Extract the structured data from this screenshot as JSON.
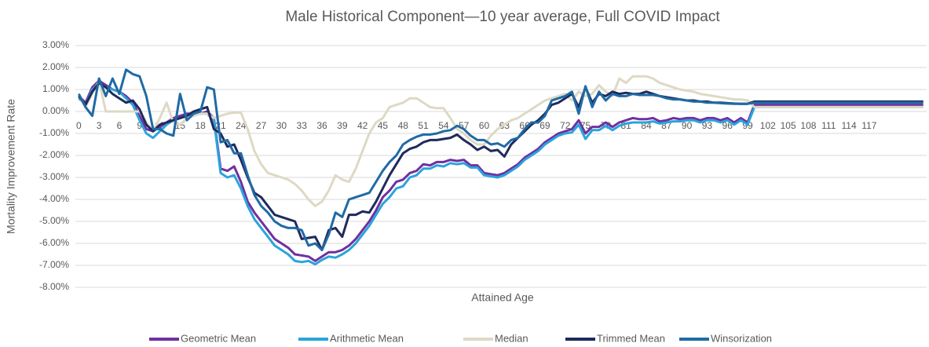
{
  "chart_data": {
    "type": "line",
    "title": "Male Historical Component—10 year average, Full COVID Impact",
    "x_label": "Attained Age",
    "y_label": "Mortality Improvement Rate",
    "ylim": [
      -8,
      3
    ],
    "yticks": [
      {
        "value": 3,
        "label": "3.00%"
      },
      {
        "value": 2,
        "label": "2.00%"
      },
      {
        "value": 1,
        "label": "1.00%"
      },
      {
        "value": 0,
        "label": "0.00%"
      },
      {
        "value": -1,
        "label": "-1.00%"
      },
      {
        "value": -2,
        "label": "-2.00%"
      },
      {
        "value": -3,
        "label": "-3.00%"
      },
      {
        "value": -4,
        "label": "-4.00%"
      },
      {
        "value": -5,
        "label": "-5.00%"
      },
      {
        "value": -6,
        "label": "-6.00%"
      },
      {
        "value": -7,
        "label": "-7.00%"
      },
      {
        "value": -8,
        "label": "-8.00%"
      }
    ],
    "grid": true,
    "legend": "bottom",
    "categories": [
      0,
      null,
      null,
      3,
      null,
      null,
      6,
      null,
      null,
      9,
      null,
      null,
      12,
      null,
      null,
      15,
      null,
      null,
      18,
      null,
      null,
      21,
      null,
      null,
      24,
      null,
      null,
      27,
      null,
      null,
      30,
      null,
      null,
      33,
      null,
      null,
      36,
      null,
      null,
      39,
      null,
      null,
      42,
      null,
      null,
      45,
      null,
      null,
      48,
      null,
      null,
      51,
      null,
      null,
      54,
      null,
      null,
      57,
      null,
      null,
      60,
      null,
      null,
      63,
      null,
      null,
      66,
      null,
      null,
      69,
      null,
      null,
      72,
      null,
      null,
      75,
      null,
      null,
      78,
      null,
      null,
      81,
      null,
      null,
      84,
      null,
      null,
      87,
      null,
      null,
      90,
      null,
      null,
      93,
      null,
      null,
      96,
      null,
      null,
      99,
      null,
      null,
      102,
      null,
      null,
      105,
      null,
      null,
      108,
      null,
      null,
      111,
      null,
      null,
      114,
      null,
      null,
      117,
      null,
      null,
      null,
      null,
      null,
      null,
      null,
      null
    ],
    "series": [
      {
        "name": "Geometric Mean",
        "color": "#7030a0",
        "values": [
          0.7,
          0.4,
          1.1,
          1.4,
          1.2,
          1.0,
          0.9,
          0.7,
          0.4,
          -0.2,
          -0.8,
          -0.9,
          -0.7,
          -0.5,
          -0.3,
          -0.2,
          -0.1,
          -0.1,
          -0.1,
          0.0,
          -0.3,
          -2.6,
          -2.7,
          -2.5,
          -3.2,
          -4.1,
          -4.6,
          -5.0,
          -5.4,
          -5.8,
          -6.0,
          -6.2,
          -6.5,
          -6.55,
          -6.6,
          -6.8,
          -6.6,
          -6.4,
          -6.4,
          -6.3,
          -6.1,
          -5.8,
          -5.4,
          -5.0,
          -4.5,
          -3.9,
          -3.6,
          -3.2,
          -3.1,
          -2.8,
          -2.7,
          -2.4,
          -2.45,
          -2.3,
          -2.3,
          -2.2,
          -2.25,
          -2.2,
          -2.45,
          -2.45,
          -2.8,
          -2.85,
          -2.9,
          -2.8,
          -2.6,
          -2.4,
          -2.1,
          -1.9,
          -1.7,
          -1.4,
          -1.2,
          -1.0,
          -0.9,
          -0.8,
          -0.4,
          -1.0,
          -0.7,
          -0.7,
          -0.5,
          -0.7,
          -0.5,
          -0.4,
          -0.3,
          -0.35,
          -0.35,
          -0.3,
          -0.45,
          -0.4,
          -0.3,
          -0.35,
          -0.3,
          -0.3,
          -0.4,
          -0.3,
          -0.3,
          -0.4,
          -0.3,
          -0.5,
          -0.3,
          -0.5,
          0.3,
          0.3,
          0.3,
          0.3,
          0.3,
          0.3,
          0.3,
          0.3,
          0.3,
          0.3,
          0.3,
          0.3,
          0.3,
          0.3,
          0.3,
          0.3,
          0.3,
          0.3,
          0.3,
          0.3,
          0.3,
          0.3,
          0.3,
          0.3,
          0.3,
          0.3
        ]
      },
      {
        "name": "Arithmetic Mean",
        "color": "#2aa4dc",
        "values": [
          0.6,
          0.3,
          1.0,
          1.3,
          1.1,
          1.0,
          0.9,
          0.6,
          0.3,
          -0.4,
          -1.0,
          -1.2,
          -0.9,
          -0.6,
          -0.4,
          -0.3,
          -0.2,
          -0.1,
          -0.1,
          -0.1,
          -0.4,
          -2.8,
          -3.0,
          -2.9,
          -3.5,
          -4.3,
          -4.9,
          -5.3,
          -5.7,
          -6.1,
          -6.3,
          -6.5,
          -6.8,
          -6.85,
          -6.8,
          -6.95,
          -6.75,
          -6.6,
          -6.65,
          -6.5,
          -6.3,
          -6.0,
          -5.6,
          -5.2,
          -4.7,
          -4.2,
          -3.9,
          -3.5,
          -3.4,
          -3.0,
          -2.9,
          -2.6,
          -2.6,
          -2.45,
          -2.5,
          -2.35,
          -2.4,
          -2.35,
          -2.55,
          -2.55,
          -2.9,
          -2.95,
          -3.0,
          -2.9,
          -2.7,
          -2.5,
          -2.2,
          -2.0,
          -1.8,
          -1.5,
          -1.3,
          -1.1,
          -1.0,
          -0.95,
          -0.6,
          -1.25,
          -0.85,
          -0.85,
          -0.65,
          -0.85,
          -0.65,
          -0.55,
          -0.5,
          -0.5,
          -0.5,
          -0.45,
          -0.55,
          -0.5,
          -0.45,
          -0.45,
          -0.4,
          -0.4,
          -0.5,
          -0.4,
          -0.4,
          -0.5,
          -0.4,
          -0.6,
          -0.4,
          -0.6,
          0.2,
          0.2,
          0.2,
          0.2,
          0.2,
          0.2,
          0.2,
          0.2,
          0.2,
          0.2,
          0.2,
          0.2,
          0.2,
          0.2,
          0.2,
          0.2,
          0.2,
          0.2,
          0.2,
          0.2,
          0.2,
          0.2,
          0.2,
          0.2,
          0.2,
          0.2
        ]
      },
      {
        "name": "Median",
        "color": "#ddd9c4",
        "values": [
          0.7,
          0.2,
          0.8,
          1.4,
          0.0,
          0.0,
          0.0,
          0.0,
          0.0,
          0.0,
          -0.5,
          -0.9,
          -0.3,
          0.4,
          -0.5,
          -0.6,
          -0.3,
          -0.2,
          -0.1,
          -0.1,
          -0.3,
          -0.2,
          -0.1,
          -0.05,
          -0.05,
          -0.8,
          -1.8,
          -2.4,
          -2.8,
          -2.9,
          -3.0,
          -3.1,
          -3.3,
          -3.6,
          -4.0,
          -4.3,
          -4.1,
          -3.6,
          -2.9,
          -3.1,
          -3.2,
          -2.6,
          -1.8,
          -1.0,
          -0.5,
          -0.3,
          0.2,
          0.3,
          0.4,
          0.6,
          0.6,
          0.4,
          0.2,
          0.15,
          0.15,
          -0.3,
          -0.8,
          -1.0,
          -1.3,
          -1.5,
          -1.5,
          -1.1,
          -0.8,
          -0.6,
          -0.4,
          -0.3,
          -0.1,
          0.1,
          0.3,
          0.5,
          0.6,
          0.7,
          0.8,
          0.5,
          0.9,
          0.7,
          0.8,
          1.2,
          0.9,
          0.7,
          1.5,
          1.3,
          1.6,
          1.6,
          1.6,
          1.5,
          1.3,
          1.2,
          1.1,
          1.0,
          0.95,
          0.9,
          0.8,
          0.75,
          0.7,
          0.65,
          0.6,
          0.55,
          0.55,
          0.5,
          0.2,
          0.2,
          0.2,
          0.2,
          0.2,
          0.2,
          0.2,
          0.2,
          0.2,
          0.2,
          0.2,
          0.2,
          0.2,
          0.2,
          0.2,
          0.2,
          0.2,
          0.2,
          0.2,
          0.2,
          0.2,
          0.2,
          0.2,
          0.2,
          0.2,
          0.2
        ]
      },
      {
        "name": "Trimmed Mean",
        "color": "#1f2a5c",
        "values": [
          0.7,
          0.3,
          0.9,
          1.3,
          1.1,
          0.8,
          0.6,
          0.4,
          0.5,
          0.1,
          -0.6,
          -0.9,
          -0.6,
          -0.5,
          -0.4,
          -0.3,
          -0.2,
          0.0,
          0.1,
          0.2,
          -0.8,
          -1.0,
          -1.6,
          -1.5,
          -2.2,
          -3.0,
          -3.7,
          -3.9,
          -4.3,
          -4.7,
          -4.8,
          -4.9,
          -5.0,
          -5.8,
          -5.75,
          -5.7,
          -6.3,
          -5.4,
          -5.3,
          -5.7,
          -4.7,
          -4.7,
          -4.55,
          -4.6,
          -4.1,
          -3.5,
          -2.9,
          -2.4,
          -1.9,
          -1.7,
          -1.6,
          -1.4,
          -1.3,
          -1.3,
          -1.25,
          -1.2,
          -1.05,
          -1.3,
          -1.5,
          -1.75,
          -1.6,
          -1.8,
          -1.75,
          -2.05,
          -1.5,
          -1.2,
          -0.9,
          -0.6,
          -0.4,
          -0.1,
          0.3,
          0.4,
          0.6,
          0.8,
          0.2,
          1.1,
          0.4,
          0.8,
          0.7,
          0.9,
          0.8,
          0.85,
          0.8,
          0.8,
          0.9,
          0.8,
          0.7,
          0.65,
          0.6,
          0.55,
          0.5,
          0.5,
          0.45,
          0.45,
          0.4,
          0.4,
          0.38,
          0.36,
          0.35,
          0.35,
          0.45,
          0.45,
          0.45,
          0.45,
          0.45,
          0.45,
          0.45,
          0.45,
          0.45,
          0.45,
          0.45,
          0.45,
          0.45,
          0.45,
          0.45,
          0.45,
          0.45,
          0.45,
          0.45,
          0.45,
          0.45,
          0.45,
          0.45,
          0.45,
          0.45,
          0.45
        ]
      },
      {
        "name": "Winsorization",
        "color": "#1f6aa5",
        "values": [
          0.8,
          0.2,
          -0.2,
          1.5,
          0.7,
          1.5,
          0.8,
          1.9,
          1.7,
          1.6,
          0.7,
          -0.8,
          -0.8,
          -1.0,
          -1.1,
          0.8,
          -0.4,
          -0.1,
          0.0,
          1.1,
          1.0,
          -1.4,
          -1.3,
          -1.9,
          -1.9,
          -2.9,
          -3.8,
          -4.3,
          -4.6,
          -5.0,
          -5.2,
          -5.3,
          -5.3,
          -5.4,
          -6.1,
          -6.0,
          -6.3,
          -5.6,
          -4.6,
          -4.8,
          -4.0,
          -3.9,
          -3.8,
          -3.7,
          -3.2,
          -2.7,
          -2.3,
          -2.0,
          -1.5,
          -1.3,
          -1.15,
          -1.05,
          -1.05,
          -1.0,
          -0.9,
          -0.85,
          -0.65,
          -0.8,
          -1.1,
          -1.3,
          -1.3,
          -1.5,
          -1.45,
          -1.6,
          -1.3,
          -1.2,
          -0.8,
          -0.5,
          -0.5,
          -0.2,
          0.5,
          0.6,
          0.7,
          0.9,
          -0.1,
          1.15,
          0.2,
          0.9,
          0.5,
          0.8,
          0.7,
          0.7,
          0.8,
          0.75,
          0.75,
          0.75,
          0.7,
          0.6,
          0.55,
          0.55,
          0.5,
          0.45,
          0.45,
          0.4,
          0.4,
          0.38,
          0.36,
          0.35,
          0.35,
          0.35,
          0.4,
          0.4,
          0.4,
          0.4,
          0.4,
          0.4,
          0.4,
          0.4,
          0.4,
          0.4,
          0.4,
          0.4,
          0.4,
          0.4,
          0.4,
          0.4,
          0.4,
          0.4,
          0.4,
          0.4,
          0.4,
          0.4,
          0.4,
          0.4,
          0.4,
          0.4
        ]
      }
    ]
  }
}
